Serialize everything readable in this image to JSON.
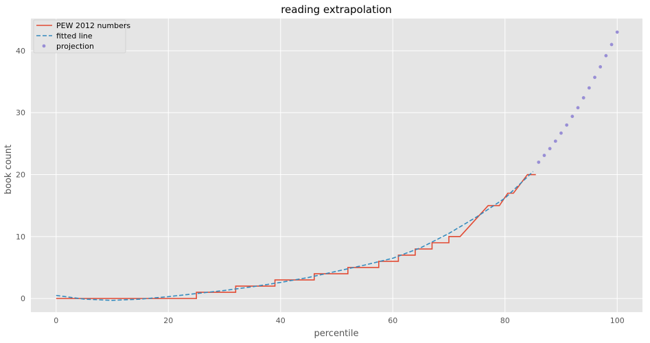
{
  "chart_data": {
    "type": "line",
    "title": "reading extrapolation",
    "xlabel": "percentile",
    "ylabel": "book count",
    "xlim": [
      -4.5,
      104.5
    ],
    "ylim": [
      -2.2,
      45.2
    ],
    "xticks": [
      0,
      20,
      40,
      60,
      80,
      100
    ],
    "yticks": [
      0,
      10,
      20,
      30,
      40
    ],
    "grid": true,
    "legend_position": "top-left",
    "colors": {
      "background": "#e5e5e5",
      "grid": "#ffffff",
      "pew": "#e24a33",
      "fitted": "#348abd",
      "projection": "#988ed5"
    },
    "series": [
      {
        "name": "PEW 2012 numbers",
        "style": "solid",
        "x": [
          0,
          25,
          25,
          32,
          32,
          39,
          39,
          46,
          46,
          52,
          52,
          57.5,
          57.5,
          61,
          61,
          64,
          64,
          67,
          67,
          70,
          70,
          72,
          77,
          79,
          80.5,
          81.5,
          84,
          85.5
        ],
        "y": [
          0,
          0,
          1,
          1,
          2,
          2,
          3,
          3,
          4,
          4,
          5,
          5,
          6,
          6,
          7,
          7,
          8,
          8,
          9,
          9,
          10,
          10,
          15,
          15,
          17,
          17,
          20,
          20
        ]
      },
      {
        "name": "fitted line",
        "style": "dashed",
        "x": [
          0,
          5,
          10,
          15,
          20,
          25,
          30,
          35,
          40,
          45,
          50,
          55,
          60,
          65,
          70,
          75,
          80,
          85
        ],
        "y": [
          0.5,
          -0.1,
          -0.3,
          -0.1,
          0.3,
          0.8,
          1.3,
          1.9,
          2.6,
          3.4,
          4.4,
          5.4,
          6.5,
          8.2,
          10.5,
          13.2,
          16.2,
          20.5
        ]
      },
      {
        "name": "projection",
        "style": "dots",
        "x": [
          86,
          87,
          88,
          89,
          90,
          91,
          92,
          93,
          94,
          95,
          96,
          97,
          98,
          99,
          100
        ],
        "y": [
          22.0,
          23.1,
          24.2,
          25.4,
          26.7,
          28.0,
          29.4,
          30.8,
          32.4,
          34.0,
          35.7,
          37.4,
          39.2,
          41.0,
          43.0
        ]
      }
    ]
  }
}
